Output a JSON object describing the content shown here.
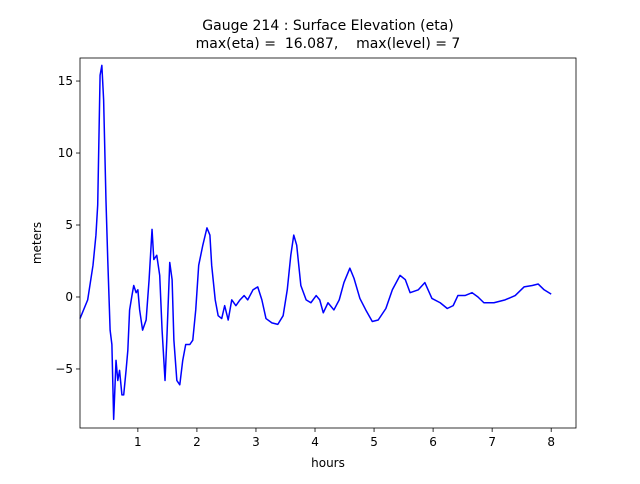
{
  "chart_data": {
    "type": "line",
    "title": "Gauge 214 : Surface Elevation (eta)",
    "subtitle": "max(eta) =  16.087,    max(level) = 7",
    "x_label": "hours",
    "y_label": "meters",
    "xlim": [
      0.02,
      8.42
    ],
    "ylim": [
      -9.1,
      16.6
    ],
    "xticks": [
      1,
      2,
      3,
      4,
      5,
      6,
      7,
      8
    ],
    "yticks": [
      {
        "value": -5,
        "label": "−5"
      },
      0,
      5,
      10,
      15
    ],
    "x": [
      0.02,
      0.15,
      0.24,
      0.29,
      0.32,
      0.36,
      0.39,
      0.42,
      0.46,
      0.49,
      0.53,
      0.56,
      0.59,
      0.63,
      0.66,
      0.69,
      0.73,
      0.76,
      0.8,
      0.83,
      0.86,
      0.9,
      0.93,
      0.97,
      1.0,
      1.03,
      1.08,
      1.14,
      1.19,
      1.24,
      1.27,
      1.32,
      1.37,
      1.41,
      1.46,
      1.49,
      1.54,
      1.58,
      1.61,
      1.66,
      1.71,
      1.76,
      1.81,
      1.88,
      1.93,
      1.98,
      2.03,
      2.1,
      2.17,
      2.22,
      2.25,
      2.31,
      2.36,
      2.42,
      2.47,
      2.53,
      2.59,
      2.66,
      2.73,
      2.8,
      2.86,
      2.95,
      3.03,
      3.1,
      3.17,
      3.27,
      3.37,
      3.46,
      3.53,
      3.59,
      3.64,
      3.69,
      3.76,
      3.85,
      3.93,
      4.02,
      4.08,
      4.14,
      4.22,
      4.32,
      4.41,
      4.49,
      4.59,
      4.66,
      4.76,
      4.86,
      4.97,
      5.07,
      5.2,
      5.31,
      5.44,
      5.53,
      5.61,
      5.75,
      5.86,
      5.98,
      6.12,
      6.24,
      6.34,
      6.42,
      6.54,
      6.66,
      6.76,
      6.86,
      7.03,
      7.22,
      7.39,
      7.54,
      7.68,
      7.78,
      7.88,
      8.0
    ],
    "series": [
      {
        "color": "#0000ff",
        "values": [
          -1.5,
          -0.2,
          2.2,
          4.3,
          6.4,
          15.4,
          16.087,
          13.7,
          6.7,
          2.6,
          -2.3,
          -3.3,
          -8.5,
          -4.4,
          -5.8,
          -5.1,
          -6.8,
          -6.8,
          -5.1,
          -3.7,
          -0.9,
          0.1,
          0.8,
          0.3,
          0.5,
          -0.9,
          -2.3,
          -1.6,
          1.2,
          4.7,
          2.6,
          2.9,
          1.5,
          -2.3,
          -5.8,
          -3.0,
          2.4,
          1.2,
          -3.0,
          -5.8,
          -6.1,
          -4.4,
          -3.3,
          -3.3,
          -3.0,
          -0.9,
          2.2,
          3.6,
          4.8,
          4.3,
          2.2,
          -0.2,
          -1.3,
          -1.5,
          -0.6,
          -1.6,
          -0.2,
          -0.6,
          -0.2,
          0.1,
          -0.2,
          0.5,
          0.7,
          -0.2,
          -1.5,
          -1.8,
          -1.9,
          -1.3,
          0.5,
          2.9,
          4.3,
          3.6,
          0.8,
          -0.2,
          -0.4,
          0.1,
          -0.2,
          -1.1,
          -0.4,
          -0.9,
          -0.2,
          1.0,
          2.0,
          1.3,
          -0.1,
          -0.9,
          -1.7,
          -1.6,
          -0.8,
          0.5,
          1.5,
          1.2,
          0.3,
          0.5,
          1.0,
          -0.1,
          -0.4,
          -0.8,
          -0.6,
          0.1,
          0.1,
          0.3,
          0.0,
          -0.4,
          -0.4,
          -0.2,
          0.1,
          0.7,
          0.8,
          0.9,
          0.5,
          0.2
        ]
      }
    ]
  }
}
